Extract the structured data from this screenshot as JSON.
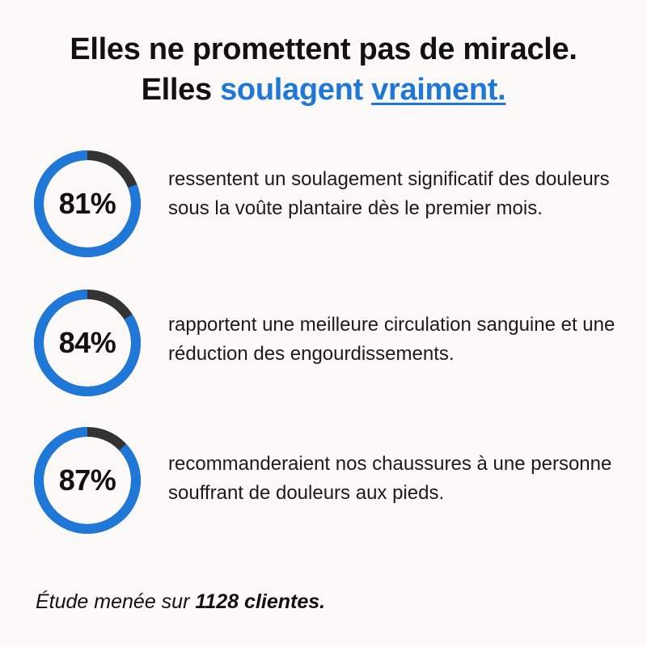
{
  "headline": {
    "line1": "Elles ne promettent pas de miracle.",
    "line2_prefix": "Elles ",
    "line2_accent": "soulagent",
    "line2_space": " ",
    "line2_link": "vraiment."
  },
  "stats": [
    {
      "percent_label": "81%",
      "fraction": 0.81,
      "description": "ressentent un soulagement significatif des douleurs sous la voûte plantaire dès le premier mois."
    },
    {
      "percent_label": "84%",
      "fraction": 0.84,
      "description": "rapportent une meilleure circulation sanguine et une réduction des engourdissements."
    },
    {
      "percent_label": "87%",
      "fraction": 0.87,
      "description": "recommanderaient nos chaussures à une personne souffrant de douleurs aux pieds."
    }
  ],
  "footer": {
    "prefix": "Étude menée sur ",
    "emphasis": "1128 clientes."
  },
  "colors": {
    "accent": "#1f77d8",
    "ring_track": "#333333",
    "background": "#fbf9f8"
  }
}
